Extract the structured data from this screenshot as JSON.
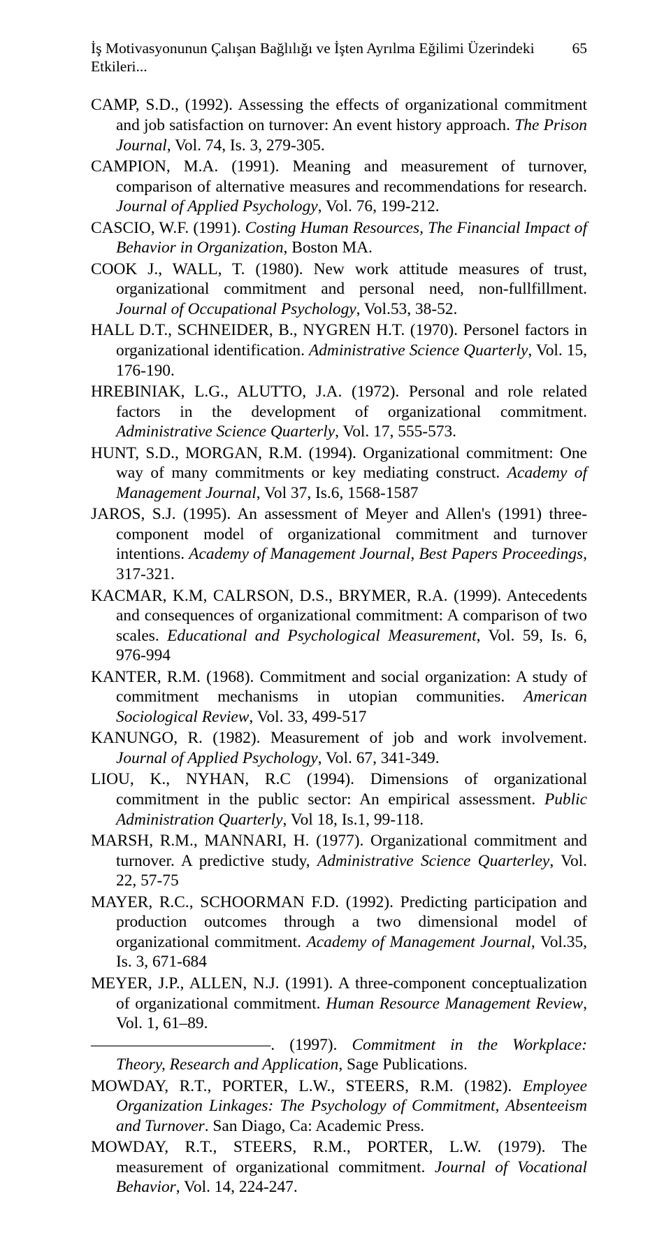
{
  "header": {
    "title": "İş Motivasyonunun Çalışan Bağlılığı ve İşten Ayrılma Eğilimi Üzerindeki Etkileri...",
    "page": "65"
  },
  "refs": [
    {
      "html": "CAMP, S.D., (1992). Assessing the effects of organizational commitment and job satisfaction on turnover: An event history approach. <span class=\"italic\">The Prison Journal</span>, Vol. 74, Is. 3, 279-305."
    },
    {
      "html": "CAMPION, M.A. (1991). Meaning and measurement of turnover, comparison of alternative measures and recommendations for research. <span class=\"italic\">Journal of Applied Psychology</span>, Vol. 76, 199-212."
    },
    {
      "html": "CASCIO, W.F. (1991). <span class=\"italic\">Costing Human Resources, The Financial Impact of Behavior in Organization</span>, Boston MA."
    },
    {
      "html": "COOK J., WALL, T. (1980). New work attitude measures of trust, organizational commitment and personal need, non-fullfillment. <span class=\"italic\">Journal of Occupational Psychology</span>, Vol.53, 38-52."
    },
    {
      "html": "HALL D.T., SCHNEIDER, B., NYGREN H.T. (1970). Personel factors in organizational identification. <span class=\"italic\">Administrative Science Quarterly</span>, Vol. 15, 176-190."
    },
    {
      "html": "HREBINIAK, L.G., ALUTTO, J.A. (1972). Personal and role related factors in the development of organizational commitment. <span class=\"italic\">Administrative Science Quarterly</span>, Vol. 17, 555-573."
    },
    {
      "html": "HUNT, S.D., MORGAN, R.M. (1994). Organizational commitment: One way of many commitments or key mediating construct. <span class=\"italic\">Academy of Management Journal</span>, Vol 37, Is.6, 1568-1587"
    },
    {
      "html": "JAROS, S.J. (1995). An assessment of Meyer and Allen's (1991) three-component model of organizational commitment and turnover intentions. <span class=\"italic\">Academy of Management Journal, Best Papers Proceedings</span>, 317-321."
    },
    {
      "html": "KACMAR, K.M, CALRSON, D.S., BRYMER, R.A. (1999). Antecedents and consequences of organizational commitment: A comparison of two scales. <span class=\"italic\">Educational and Psychological Measurement</span>, Vol. 59, Is. 6, 976-994"
    },
    {
      "html": "KANTER, R.M. (1968). Commitment and social organization: A study of commitment mechanisms in utopian communities. <span class=\"italic\">American Sociological Review</span>, Vol. 33, 499-517"
    },
    {
      "html": "KANUNGO, R. (1982). Measurement of job and work involvement. <span class=\"italic\">Journal of Applied Psychology</span>, Vol. 67, 341-349."
    },
    {
      "html": "LIOU, K., NYHAN, R.C (1994). Dimensions of organizational commitment in the public sector: An empirical assessment. <span class=\"italic\">Public Administration Quarterly</span>, Vol 18, Is.1, 99-118."
    },
    {
      "html": "MARSH, R.M., MANNARI, H. (1977). Organizational commitment and turnover. A predictive study, <span class=\"italic\">Administrative Science Quarterley</span>, Vol. 22, 57-75"
    },
    {
      "html": "MAYER, R.C., SCHOORMAN F.D. (1992). Predicting participation and production outcomes through a two dimensional model of organizational commitment. <span class=\"italic\">Academy of Management Journal</span>, Vol.35, Is. 3, 671-684"
    },
    {
      "html": "MEYER, J.P., ALLEN, N.J. (1991). A three-component conceptualization of organizational commitment. <span class=\"italic\">Human Resource Management Review</span>, Vol. 1, 61–89."
    },
    {
      "html": "———————————. (1997). <span class=\"italic\">Commitment in the Workplace: Theory, Research and Application</span>, Sage Publications."
    },
    {
      "html": "MOWDAY, R.T., PORTER, L.W., STEERS, R.M. (1982). <span class=\"italic\">Employee Organization Linkages: The Psychology of Commitment, Absenteeism and Turnover</span>. San Diago, Ca: Academic Press."
    },
    {
      "html": "MOWDAY, R.T., STEERS, R.M., PORTER, L.W. (1979). The measurement of organizational commitment. <span class=\"italic\">Journal of Vocational Behavior</span>, Vol. 14, 224-247."
    }
  ]
}
